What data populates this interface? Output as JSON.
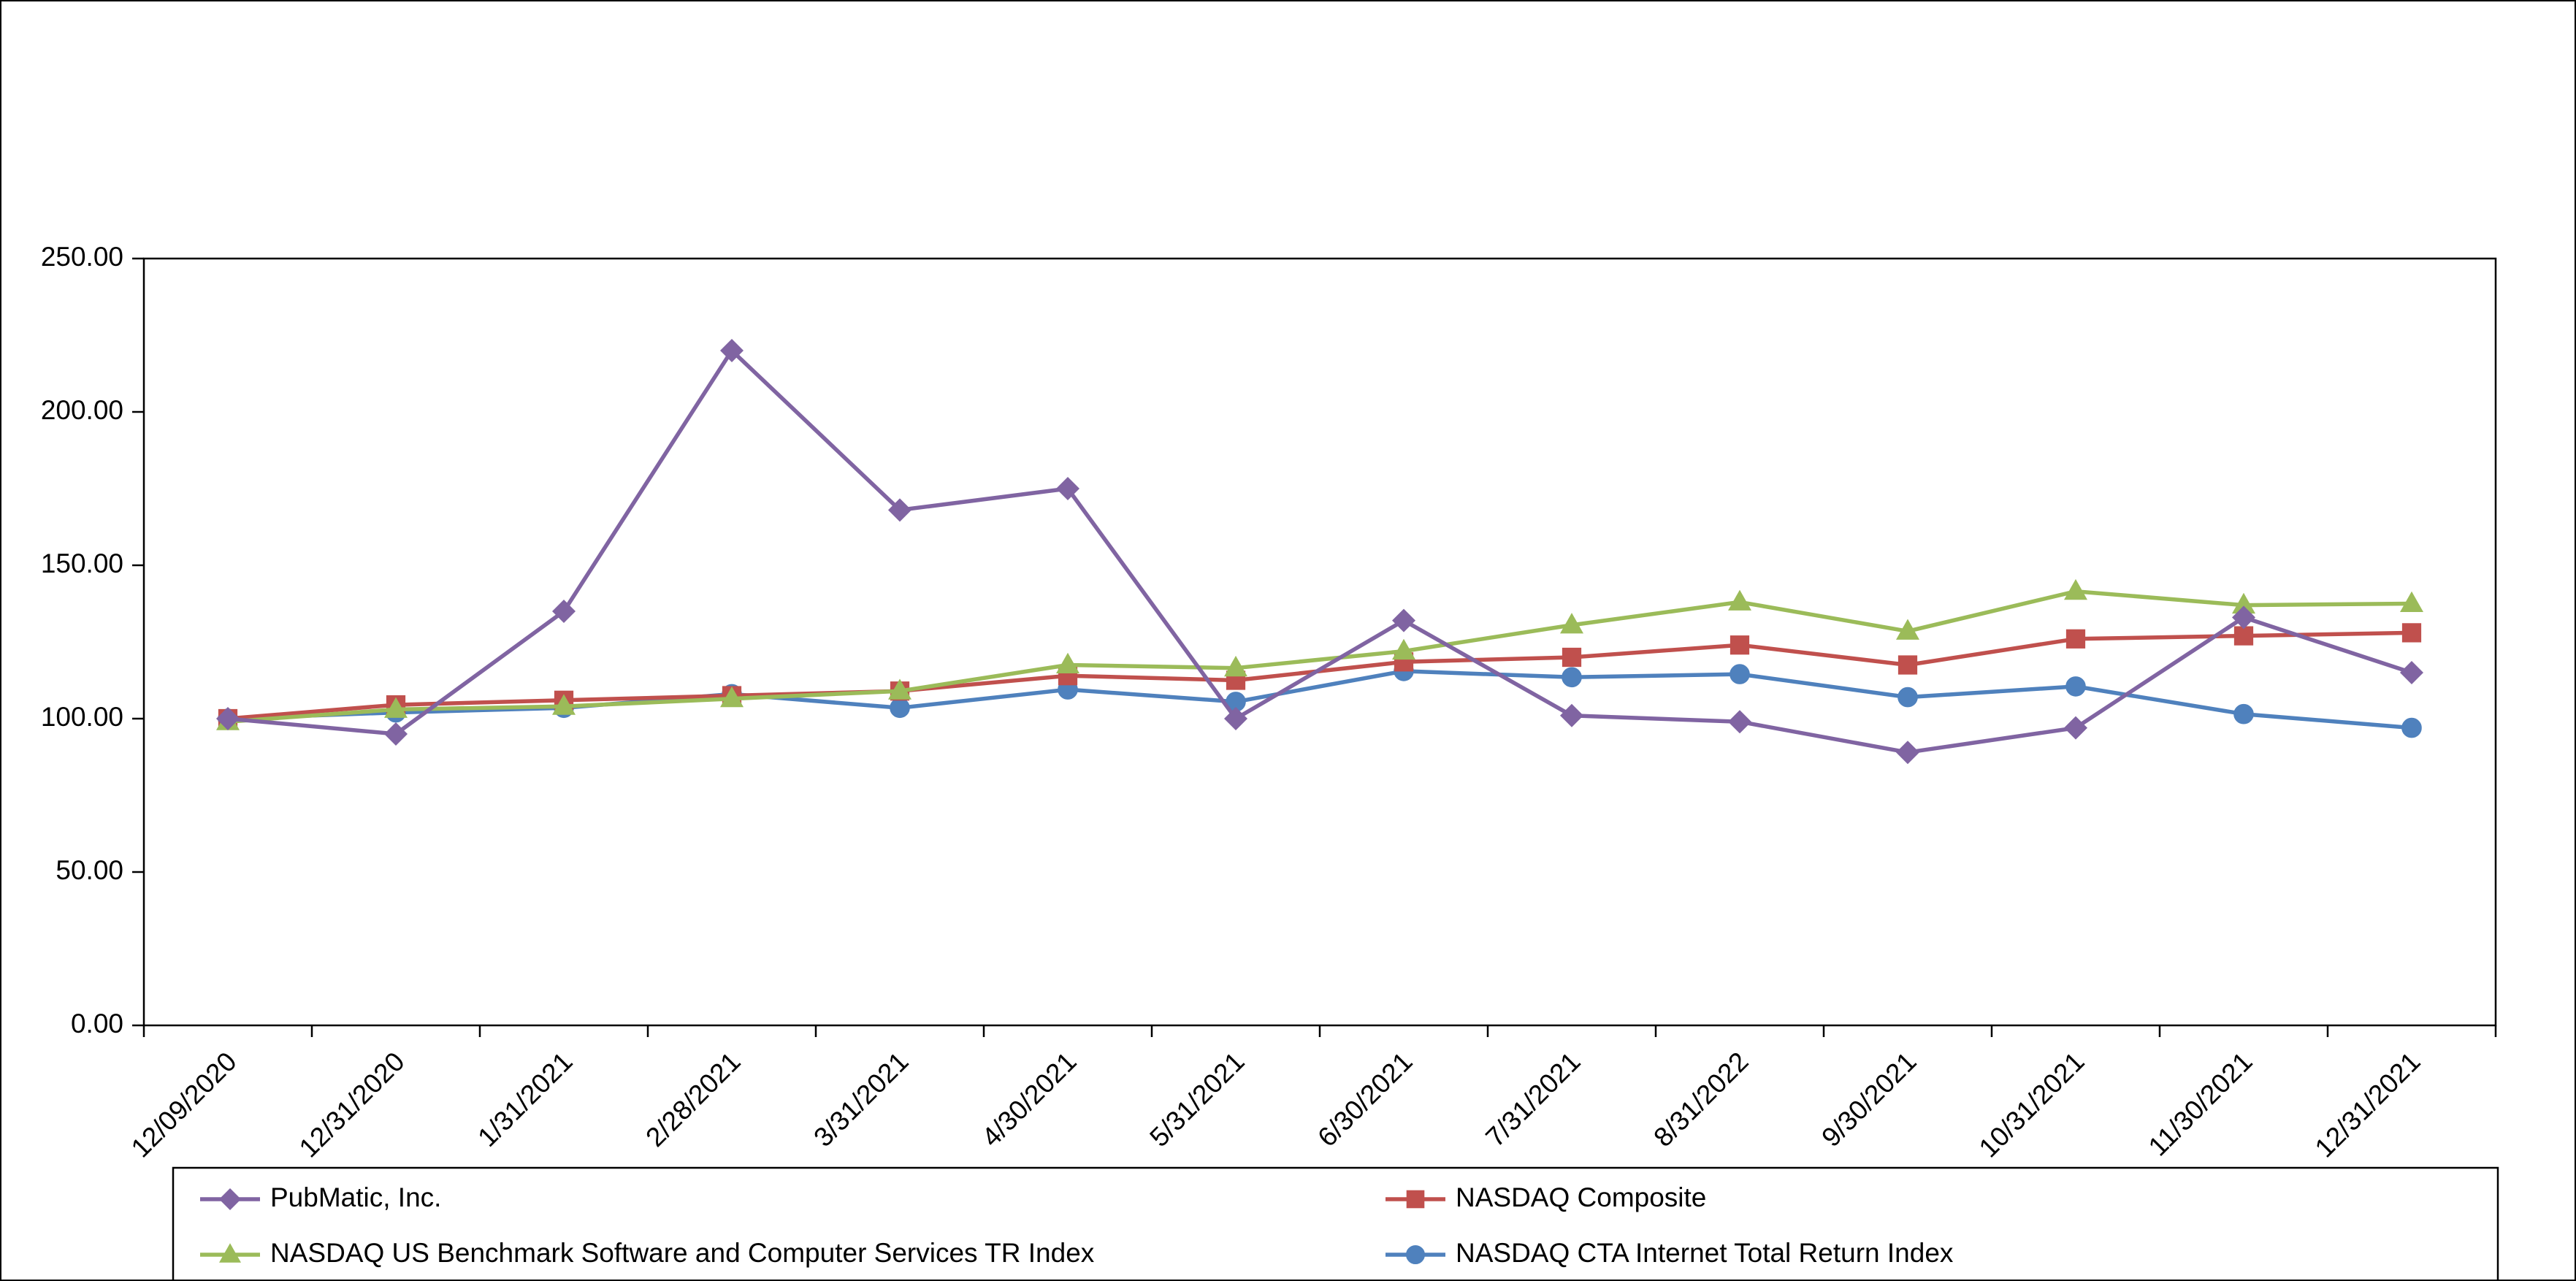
{
  "chart_data": {
    "type": "line",
    "title": "",
    "categories": [
      "12/09/2020",
      "12/31/2020",
      "1/31/2021",
      "2/28/2021",
      "3/31/2021",
      "4/30/2021",
      "5/31/2021",
      "6/30/2021",
      "7/31/2021",
      "8/31/2022",
      "9/30/2021",
      "10/31/2021",
      "11/30/2021",
      "12/31/2021"
    ],
    "series": [
      {
        "name": "PubMatic, Inc.",
        "color": "#8064A2",
        "marker": "diamond",
        "values": [
          100,
          95,
          135,
          220,
          168,
          175,
          100,
          132,
          101,
          99,
          89,
          97,
          133,
          115
        ]
      },
      {
        "name": "NASDAQ Composite",
        "color": "#C0504D",
        "marker": "square",
        "values": [
          100,
          104.5,
          106,
          107.5,
          109,
          114,
          112.5,
          118.5,
          120,
          124,
          117.5,
          126,
          127,
          128
        ]
      },
      {
        "name": "NASDAQ US Benchmark Software and Computer Services TR Index",
        "color": "#9BBB59",
        "marker": "triangle",
        "values": [
          99,
          103,
          104,
          106.5,
          109,
          117.5,
          116.5,
          122,
          130.5,
          138,
          128.5,
          141.5,
          137,
          137.5
        ]
      },
      {
        "name": "NASDAQ CTA Internet Total Return Index",
        "color": "#4F81BD",
        "marker": "circle",
        "values": [
          100,
          102,
          103.5,
          108,
          103.5,
          109.5,
          105.5,
          115.5,
          113.5,
          114.5,
          107,
          110.5,
          101.5,
          97
        ]
      }
    ],
    "draw_order": [
      3,
      1,
      2,
      0
    ],
    "ylim": [
      0,
      250
    ],
    "ytick_step": 50,
    "ytick_labels": [
      "0.00",
      "50.00",
      "100.00",
      "150.00",
      "200.00",
      "250.00"
    ],
    "grid": false,
    "legend_position": "bottom",
    "legend_layout": [
      [
        0,
        1
      ],
      [
        2,
        3
      ]
    ],
    "axis_color": "#000000",
    "background": "#FFFFFF"
  }
}
